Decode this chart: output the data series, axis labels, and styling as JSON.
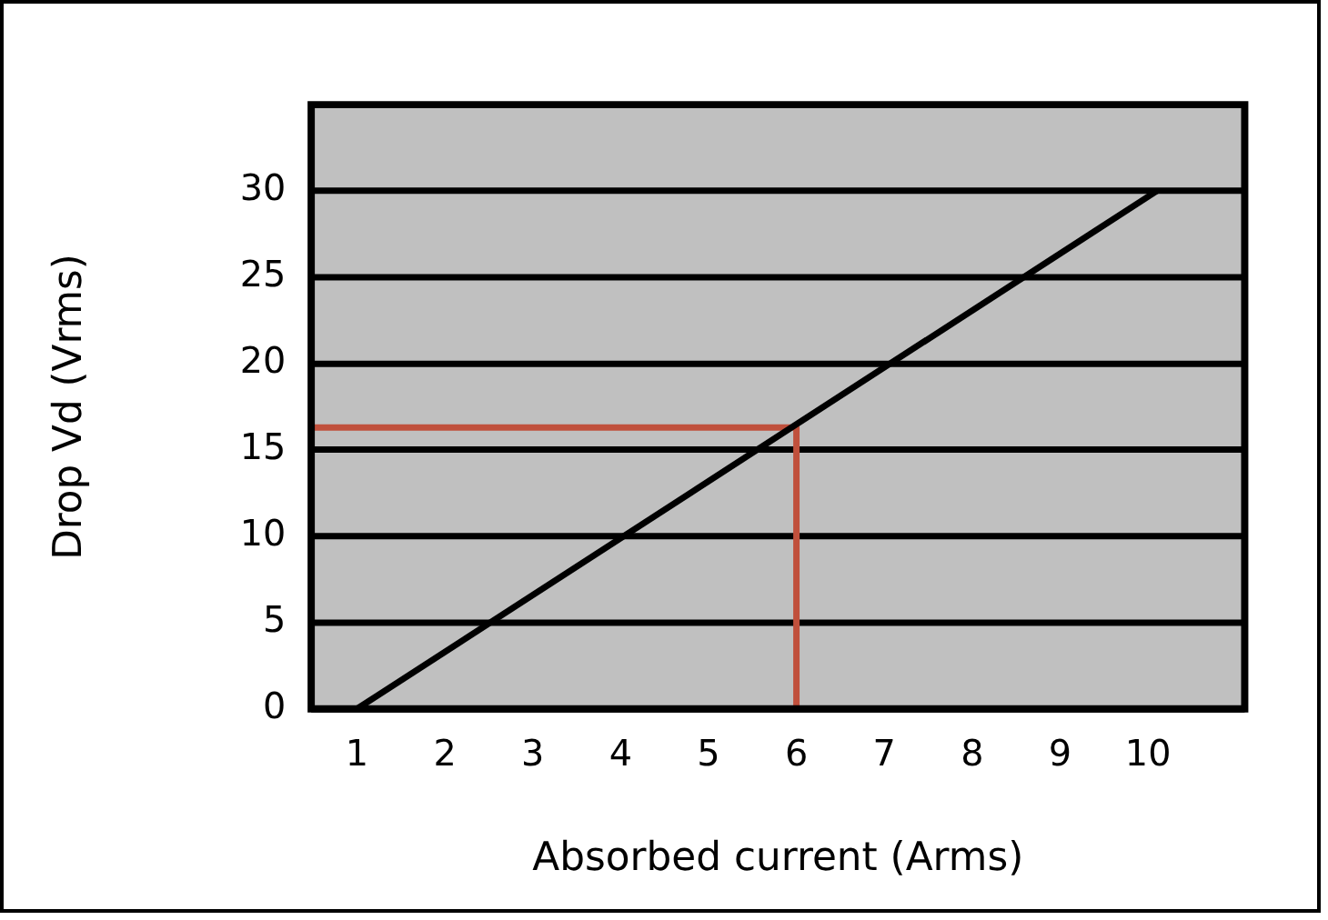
{
  "chart_data": {
    "type": "line",
    "xlabel": "Absorbed current (Arms)",
    "ylabel": "Drop Vd (Vrms)",
    "xlim": [
      0.48,
      11.1
    ],
    "ylim": [
      0,
      35
    ],
    "xticks": [
      1,
      2,
      3,
      4,
      5,
      6,
      7,
      8,
      9,
      10
    ],
    "yticks": [
      0,
      5,
      10,
      15,
      20,
      25,
      30
    ],
    "grid": "y",
    "marker": "none",
    "series": [
      {
        "color": "#000000",
        "x": [
          1,
          10.1
        ],
        "values": [
          0,
          30
        ]
      },
      {
        "type": "line",
        "color": "#c0503c",
        "x": [
          0.48,
          6,
          6
        ],
        "values": [
          16.3,
          16.3,
          0
        ]
      }
    ]
  }
}
